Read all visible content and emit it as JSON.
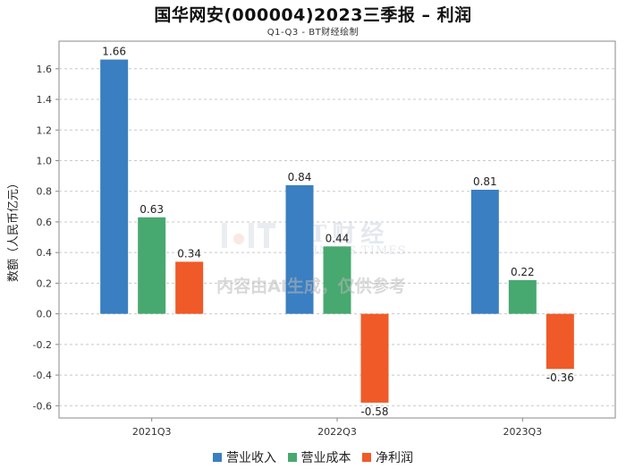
{
  "title": "国华网安(000004)2023三季报 – 利润",
  "subtitle": "Q1-Q3 - BT财经绘制",
  "watermark": {
    "brand": "BT财经",
    "brand_en": "BUSINESS TIMES",
    "notice": "内容由AI生成，仅供参考"
  },
  "colors": {
    "营业收入": "#3a7fc1",
    "营业成本": "#47a96f",
    "净利润": "#f05a28"
  },
  "chart_data": {
    "type": "bar",
    "title": "国华网安(000004)2023三季报 – 利润",
    "xlabel": "",
    "ylabel": "数额（人民币亿元）",
    "ylim": [
      -0.68,
      1.78
    ],
    "yticks": [
      -0.6,
      -0.4,
      -0.2,
      0.0,
      0.2,
      0.4,
      0.6,
      0.8,
      1.0,
      1.2,
      1.4,
      1.6
    ],
    "ytick_labels": [
      "-0.6",
      "-0.4",
      "-0.2",
      "0.0",
      "0.2",
      "0.4",
      "0.6",
      "0.8",
      "1.0",
      "1.2",
      "1.4",
      "1.6"
    ],
    "grid": true,
    "legend_position": "bottom",
    "categories": [
      "2021Q3",
      "2022Q3",
      "2023Q3"
    ],
    "series": [
      {
        "name": "营业收入",
        "values": [
          1.66,
          0.84,
          0.81
        ],
        "labels": [
          "1.66",
          "0.84",
          "0.81"
        ]
      },
      {
        "name": "营业成本",
        "values": [
          0.63,
          0.44,
          0.22
        ],
        "labels": [
          "0.63",
          "0.44",
          "0.22"
        ]
      },
      {
        "name": "净利润",
        "values": [
          0.34,
          -0.58,
          -0.36
        ],
        "labels": [
          "0.34",
          "-0.58",
          "-0.36"
        ]
      }
    ]
  }
}
